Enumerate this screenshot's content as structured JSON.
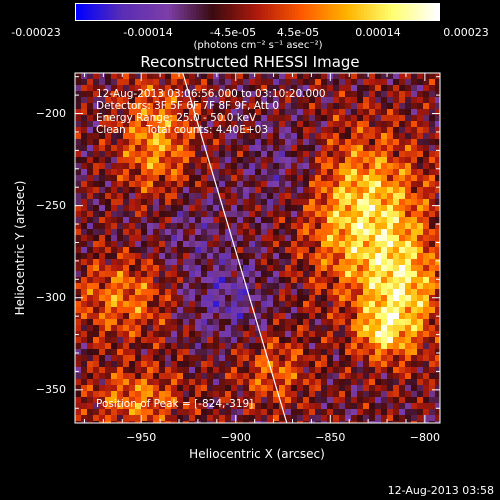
{
  "colorbar": {
    "ticks": [
      "-0.00023",
      "-0.00014",
      "-4.5e-05",
      "4.5e-05",
      "0.00014",
      "0.00023"
    ],
    "unit_label": "(photons cm⁻² s⁻¹ asec⁻²)"
  },
  "info": {
    "time_range": "12-Aug-2013 03:06:56.000 to 03:10:20.000",
    "detectors": "Detectors: 3F 5F 6F 7F 8F 9F, Att 0",
    "energy": "Energy Range: 25.0 - 50.0 keV",
    "clean": "Clean",
    "total_counts": "Total counts: 4.40E+03",
    "peak": "Position of Peak = [-824,-319]"
  },
  "footer": {
    "timestamp": "12-Aug-2013 03:58"
  },
  "chart_data": {
    "type": "heatmap",
    "title": "Reconstructed RHESSI Image",
    "xlabel": "Heliocentric X (arcsec)",
    "ylabel": "Heliocentric Y (arcsec)",
    "xlim": [
      -985,
      -792
    ],
    "ylim": [
      -368,
      -178
    ],
    "x_ticks": [
      -950,
      -900,
      -850,
      -800
    ],
    "y_ticks": [
      -200,
      -250,
      -300,
      -350
    ],
    "x_tick_labels": [
      "−950",
      "−900",
      "−850",
      "−800"
    ],
    "y_tick_labels": [
      "−200",
      "−250",
      "−300",
      "−350"
    ],
    "value_range": [
      -0.00023,
      0.00023
    ],
    "colormap": [
      "#0000ff",
      "#5a2db4",
      "#7d3ea8",
      "#3a0a10",
      "#b01a0c",
      "#ff5a00",
      "#ffb400",
      "#ffff70",
      "#ffffff"
    ],
    "peak": [
      -824,
      -319
    ],
    "limb_line": [
      [
        -928,
        -178
      ],
      [
        -873,
        -368
      ]
    ],
    "sources": [
      {
        "x": -832,
        "y": -255,
        "sx": 22,
        "sy": 30,
        "amp": 0.0002
      },
      {
        "x": -812,
        "y": -300,
        "sx": 14,
        "sy": 22,
        "amp": 0.00017
      },
      {
        "x": -824,
        "y": -319,
        "sx": 9,
        "sy": 9,
        "amp": 0.00012
      },
      {
        "x": -942,
        "y": -215,
        "sx": 14,
        "sy": 24,
        "amp": 0.00014
      },
      {
        "x": -960,
        "y": -300,
        "sx": 18,
        "sy": 16,
        "amp": 0.00012
      },
      {
        "x": -952,
        "y": -355,
        "sx": 18,
        "sy": 12,
        "amp": 0.00012
      },
      {
        "x": -880,
        "y": -340,
        "sx": 14,
        "sy": 14,
        "amp": 0.0001
      },
      {
        "x": -905,
        "y": -300,
        "sx": 16,
        "sy": 16,
        "amp": -8e-05
      },
      {
        "x": -872,
        "y": -230,
        "sx": 14,
        "sy": 18,
        "amp": -6e-05
      },
      {
        "x": -930,
        "y": -260,
        "sx": 16,
        "sy": 16,
        "amp": -5e-05
      }
    ]
  }
}
